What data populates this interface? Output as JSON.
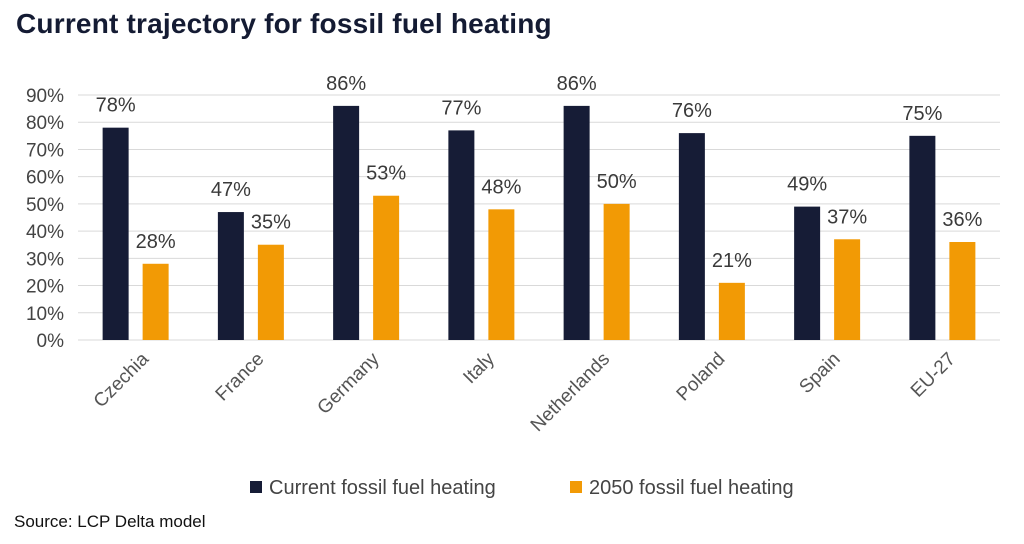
{
  "title": "Current trajectory for fossil fuel heating",
  "source": "Source: LCP Delta model",
  "colors": {
    "current": "#161c36",
    "future": "#f29a05",
    "grid": "#d9d9d9"
  },
  "chart_data": {
    "type": "bar",
    "title": "Current trajectory for fossil fuel heating",
    "categories": [
      "Czechia",
      "France",
      "Germany",
      "Italy",
      "Netherlands",
      "Poland",
      "Spain",
      "EU-27"
    ],
    "series": [
      {
        "name": "Current fossil fuel heating",
        "values": [
          78,
          47,
          86,
          77,
          86,
          76,
          49,
          75
        ],
        "labels": [
          "78%",
          "47%",
          "86%",
          "77%",
          "86%",
          "76%",
          "49%",
          "75%"
        ]
      },
      {
        "name": "2050 fossil fuel heating",
        "values": [
          28,
          35,
          53,
          48,
          50,
          21,
          37,
          36
        ],
        "labels": [
          "28%",
          "35%",
          "53%",
          "48%",
          "50%",
          "21%",
          "37%",
          "36%"
        ]
      }
    ],
    "yticks": [
      "0%",
      "10%",
      "20%",
      "30%",
      "40%",
      "50%",
      "60%",
      "70%",
      "80%",
      "90%"
    ],
    "ylim": [
      0,
      90
    ],
    "grid": true,
    "legend": "bottom"
  }
}
